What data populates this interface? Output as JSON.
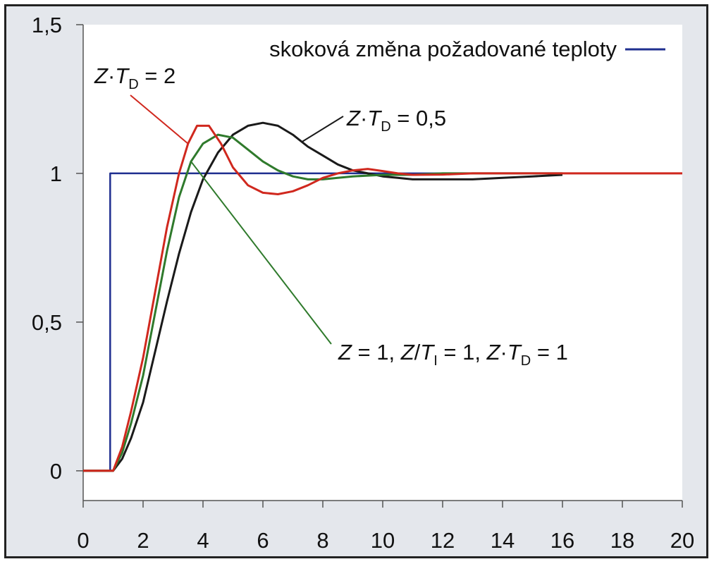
{
  "chart_data": {
    "type": "line",
    "title": "",
    "xlabel": "",
    "ylabel": "",
    "xlim": [
      0,
      20
    ],
    "ylim": [
      -0.1,
      1.5
    ],
    "x_ticks": [
      0,
      2,
      4,
      6,
      8,
      10,
      12,
      14,
      16,
      18,
      20
    ],
    "x_tick_labels": [
      "0",
      "2",
      "4",
      "6",
      "8",
      "10",
      "12",
      "14",
      "16",
      "18",
      "20"
    ],
    "y_ticks": [
      0,
      0.5,
      1,
      1.5
    ],
    "y_tick_labels": [
      "0",
      "0,5",
      "1",
      "1,5"
    ],
    "grid": false,
    "legend": {
      "position": "top-right",
      "label": "skoková změna požadované teploty"
    },
    "colors": {
      "step": "#1f2f8f",
      "red": "#d0281e",
      "green": "#2f7a2c",
      "black": "#1a1a1a",
      "plot_background": "#ffffff",
      "frame_background": "#e4e7ec"
    },
    "series": [
      {
        "name": "skoková změna požadované teploty",
        "color": "#1f2f8f",
        "points": [
          [
            0,
            0
          ],
          [
            0.9,
            0
          ],
          [
            0.9,
            1
          ],
          [
            20,
            1
          ]
        ]
      },
      {
        "name": "Z·TD = 2",
        "color": "#d0281e",
        "points": [
          [
            0,
            0
          ],
          [
            1,
            0
          ],
          [
            1.3,
            0.08
          ],
          [
            1.6,
            0.2
          ],
          [
            2,
            0.38
          ],
          [
            2.4,
            0.6
          ],
          [
            2.8,
            0.82
          ],
          [
            3.2,
            1.0
          ],
          [
            3.5,
            1.1
          ],
          [
            3.8,
            1.16
          ],
          [
            4.2,
            1.16
          ],
          [
            4.6,
            1.1
          ],
          [
            5,
            1.02
          ],
          [
            5.5,
            0.96
          ],
          [
            6,
            0.935
          ],
          [
            6.5,
            0.93
          ],
          [
            7,
            0.94
          ],
          [
            7.5,
            0.96
          ],
          [
            8,
            0.985
          ],
          [
            8.5,
            1.0
          ],
          [
            9,
            1.01
          ],
          [
            9.5,
            1.015
          ],
          [
            10,
            1.008
          ],
          [
            10.5,
            1.0
          ],
          [
            11,
            0.995
          ],
          [
            12,
            0.996
          ],
          [
            13,
            1.0
          ],
          [
            14,
            1.0
          ],
          [
            16,
            1.0
          ],
          [
            20,
            1.0
          ]
        ]
      },
      {
        "name": "Z = 1, Z/TI = 1, Z·TD = 1",
        "color": "#2f7a2c",
        "points": [
          [
            0,
            0
          ],
          [
            1,
            0
          ],
          [
            1.3,
            0.06
          ],
          [
            1.6,
            0.16
          ],
          [
            2,
            0.32
          ],
          [
            2.4,
            0.53
          ],
          [
            2.8,
            0.74
          ],
          [
            3.2,
            0.92
          ],
          [
            3.6,
            1.04
          ],
          [
            4,
            1.1
          ],
          [
            4.5,
            1.13
          ],
          [
            5,
            1.12
          ],
          [
            5.5,
            1.08
          ],
          [
            6,
            1.04
          ],
          [
            6.5,
            1.01
          ],
          [
            7,
            0.99
          ],
          [
            7.5,
            0.98
          ],
          [
            8,
            0.98
          ],
          [
            8.5,
            0.985
          ],
          [
            9,
            0.99
          ],
          [
            10,
            0.995
          ],
          [
            11,
            0.995
          ],
          [
            12,
            1.0
          ],
          [
            14,
            1.0
          ],
          [
            16,
            1.0
          ]
        ]
      },
      {
        "name": "Z·TD = 0,5",
        "color": "#1a1a1a",
        "points": [
          [
            0,
            0
          ],
          [
            1,
            0
          ],
          [
            1.3,
            0.04
          ],
          [
            1.6,
            0.11
          ],
          [
            2,
            0.23
          ],
          [
            2.4,
            0.4
          ],
          [
            2.8,
            0.57
          ],
          [
            3.2,
            0.73
          ],
          [
            3.6,
            0.87
          ],
          [
            4,
            0.98
          ],
          [
            4.5,
            1.07
          ],
          [
            5,
            1.13
          ],
          [
            5.5,
            1.16
          ],
          [
            6,
            1.17
          ],
          [
            6.5,
            1.16
          ],
          [
            7,
            1.13
          ],
          [
            7.5,
            1.09
          ],
          [
            8,
            1.06
          ],
          [
            8.5,
            1.03
          ],
          [
            9,
            1.01
          ],
          [
            9.5,
            1.0
          ],
          [
            10,
            0.99
          ],
          [
            10.5,
            0.985
          ],
          [
            11,
            0.98
          ],
          [
            12,
            0.98
          ],
          [
            13,
            0.98
          ],
          [
            14,
            0.985
          ],
          [
            15,
            0.99
          ],
          [
            16,
            0.995
          ]
        ]
      }
    ],
    "annotations": [
      {
        "target_series": 1,
        "prefix": "Z",
        "dot": "·",
        "var": "T",
        "sub": "D",
        "suffix": " = 2"
      },
      {
        "target_series": 3,
        "prefix": "Z",
        "dot": "·",
        "var": "T",
        "sub": "D",
        "suffix": " = 0,5"
      },
      {
        "target_series": 2,
        "part1": "Z",
        "part2": " = 1, ",
        "part3": "Z",
        "part4": "/",
        "part5": "T",
        "sub1": "I",
        "part6": " = 1, ",
        "part7": "Z",
        "dot": "·",
        "part8": "T",
        "sub2": "D",
        "part9": " = 1"
      }
    ]
  }
}
